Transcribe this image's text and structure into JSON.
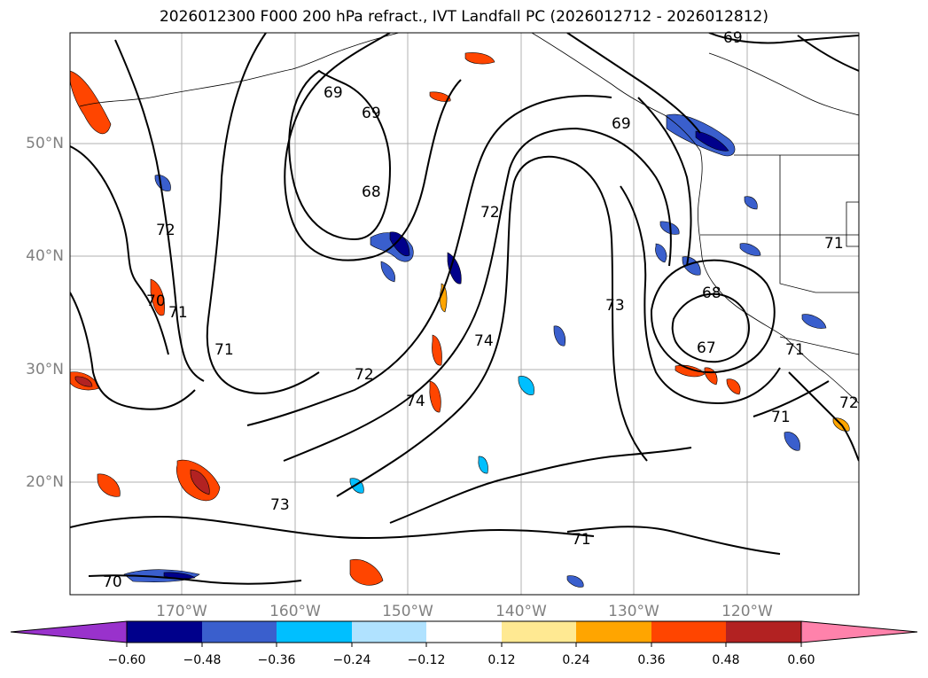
{
  "title": "2026012300 F000 200 hPa refract., IVT Landfall PC (2026012712 - 2026012812)",
  "latitude_labels": [
    "50°N",
    "40°N",
    "30°N",
    "20°N"
  ],
  "longitude_labels": [
    "170°W",
    "160°W",
    "150°W",
    "140°W",
    "130°W",
    "120°W"
  ],
  "contour_labels": [
    "69",
    "69",
    "69",
    "69",
    "68",
    "72",
    "70",
    "71",
    "71",
    "72",
    "72",
    "73",
    "74",
    "74",
    "73",
    "68",
    "67",
    "71",
    "71",
    "72",
    "71",
    "70",
    "71"
  ],
  "colorbar": {
    "tick_labels": [
      "−0.60",
      "−0.48",
      "−0.36",
      "−0.24",
      "−0.12",
      "0.12",
      "0.24",
      "0.36",
      "0.48",
      "0.60"
    ],
    "colors": [
      "#9932CC",
      "#00008B",
      "#3A5FCD",
      "#00BFFF",
      "#B0E2FF",
      "#FFFFFF",
      "#FFE992",
      "#FFA500",
      "#FF4500",
      "#B22222",
      "#FF82AB"
    ]
  },
  "colors": {
    "blue_strong": "#00008B",
    "blue_mid": "#3A5FCD",
    "blue_light": "#00BFFF",
    "blue_pale": "#B0E2FF",
    "orange_pale": "#FFE992",
    "orange": "#FFA500",
    "red_orange": "#FF4500",
    "dark_red": "#B22222",
    "gridline": "#b0b0b0",
    "axis_label": "#808080"
  }
}
